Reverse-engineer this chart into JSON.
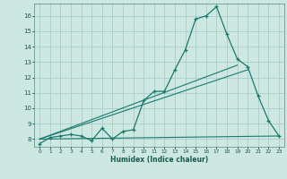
{
  "title": "",
  "xlabel": "Humidex (Indice chaleur)",
  "ylabel": "",
  "bg_color": "#cce8e0",
  "grid_color": "#aacccc",
  "line_color": "#1a7a6e",
  "xlim": [
    -0.5,
    23.5
  ],
  "ylim": [
    7.5,
    16.8
  ],
  "xticks": [
    0,
    1,
    2,
    3,
    4,
    5,
    6,
    7,
    8,
    9,
    10,
    11,
    12,
    13,
    14,
    15,
    16,
    17,
    18,
    19,
    20,
    21,
    22,
    23
  ],
  "yticks": [
    8,
    9,
    10,
    11,
    12,
    13,
    14,
    15,
    16
  ],
  "curve1_x": [
    0,
    1,
    2,
    3,
    4,
    5,
    6,
    7,
    8,
    9,
    10,
    11,
    12,
    13,
    14,
    15,
    16,
    17,
    18,
    19,
    20,
    21,
    22,
    23
  ],
  "curve1_y": [
    7.7,
    8.1,
    8.2,
    8.3,
    8.2,
    7.9,
    8.7,
    8.0,
    8.5,
    8.6,
    10.5,
    11.1,
    11.1,
    12.5,
    13.8,
    15.8,
    16.0,
    16.6,
    14.8,
    13.2,
    12.7,
    10.8,
    9.2,
    8.2
  ],
  "line2_x": [
    0,
    23
  ],
  "line2_y": [
    8.0,
    8.2
  ],
  "line3_x": [
    0,
    19
  ],
  "line3_y": [
    8.0,
    12.8
  ],
  "line4_x": [
    0,
    20
  ],
  "line4_y": [
    8.0,
    12.5
  ]
}
